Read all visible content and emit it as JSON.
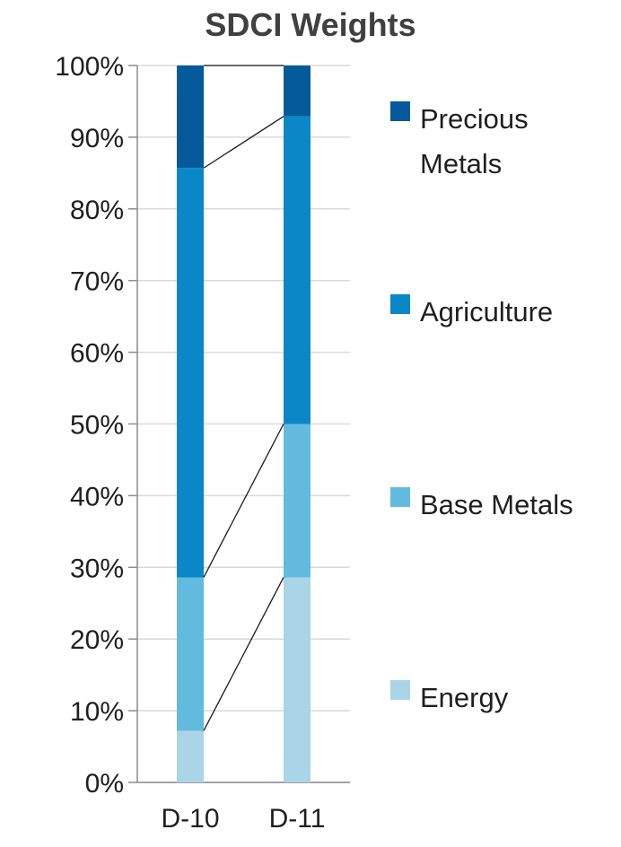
{
  "chart_data": {
    "type": "bar",
    "stacked": true,
    "title": "SDCI Weights",
    "xlabel": "",
    "ylabel": "",
    "categories": [
      "D-10",
      "D-11"
    ],
    "ylim": [
      0,
      100
    ],
    "yticks": [
      "0%",
      "10%",
      "20%",
      "30%",
      "40%",
      "50%",
      "60%",
      "70%",
      "80%",
      "90%",
      "100%"
    ],
    "grid": true,
    "legend_position": "right",
    "series_connector_lines": true,
    "series": [
      {
        "name": "Energy",
        "values": [
          7.2,
          28.6
        ],
        "color": "#a9d5e6"
      },
      {
        "name": "Base Metals",
        "values": [
          21.4,
          21.4
        ],
        "color": "#62bbdf"
      },
      {
        "name": "Agriculture",
        "values": [
          57.1,
          42.9
        ],
        "color": "#0a87c6"
      },
      {
        "name": "Precious Metals",
        "values": [
          14.3,
          7.1
        ],
        "color": "#045a9b"
      }
    ],
    "legend": [
      {
        "lines": [
          "Precious",
          "Metals"
        ],
        "color": "#045a9b"
      },
      {
        "lines": [
          "Agriculture"
        ],
        "color": "#0a87c6"
      },
      {
        "lines": [
          "Base Metals"
        ],
        "color": "#62bbdf"
      },
      {
        "lines": [
          "Energy"
        ],
        "color": "#a9d5e6"
      }
    ]
  }
}
